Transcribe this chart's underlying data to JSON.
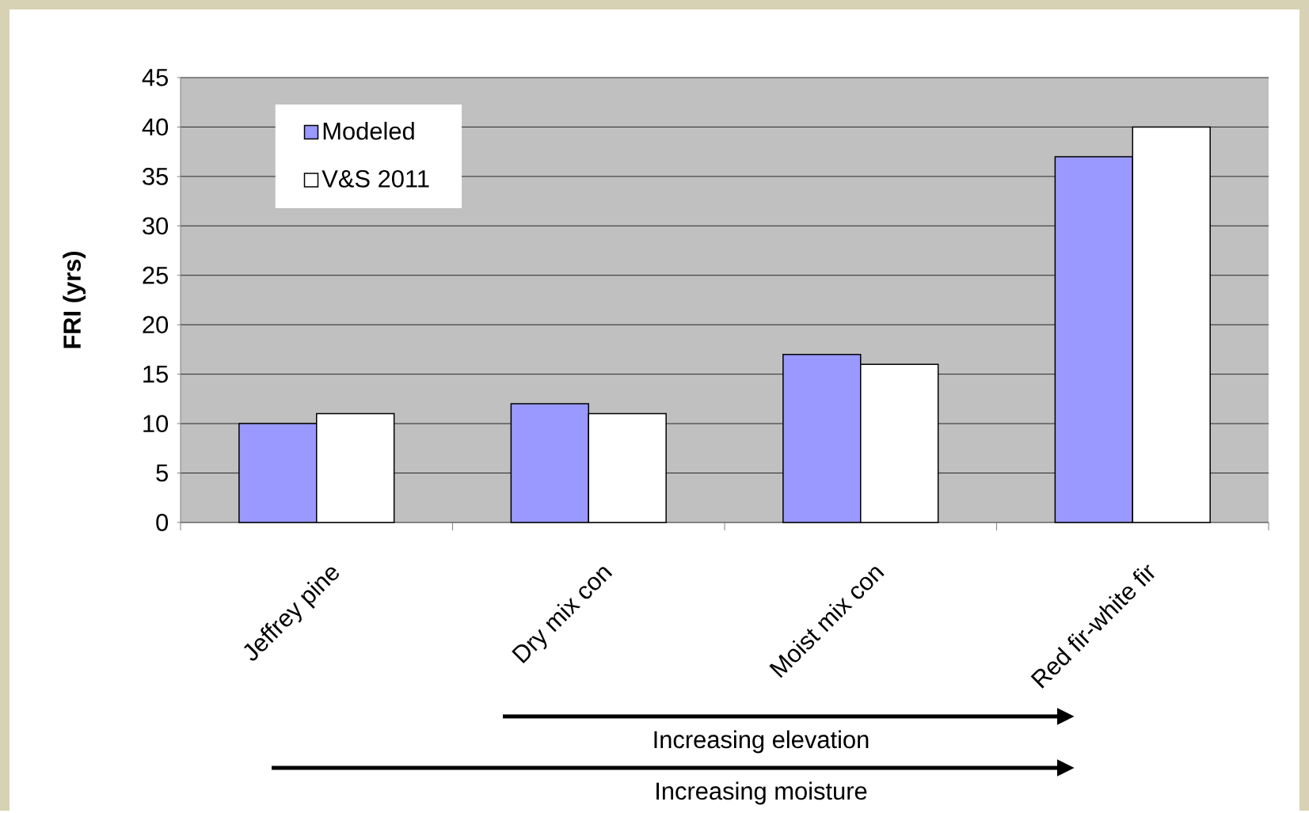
{
  "chart_data": {
    "type": "bar",
    "ylabel": "FRI (yrs)",
    "categories": [
      "Jeffrey pine",
      "Dry mix con",
      "Moist mix con",
      "Red fir-white fir"
    ],
    "series": [
      {
        "name": "Modeled",
        "color": "#9999ff",
        "values": [
          10,
          12,
          17,
          37
        ]
      },
      {
        "name": "V&S 2011",
        "color": "#ffffff",
        "values": [
          11,
          11,
          16,
          40
        ]
      }
    ],
    "ylim": [
      0,
      45
    ],
    "yticks": [
      0,
      5,
      10,
      15,
      20,
      25,
      30,
      35,
      40,
      45
    ],
    "grid": "y",
    "legend": "top left",
    "annotations": [
      "Increasing elevation",
      "Increasing moisture"
    ]
  }
}
